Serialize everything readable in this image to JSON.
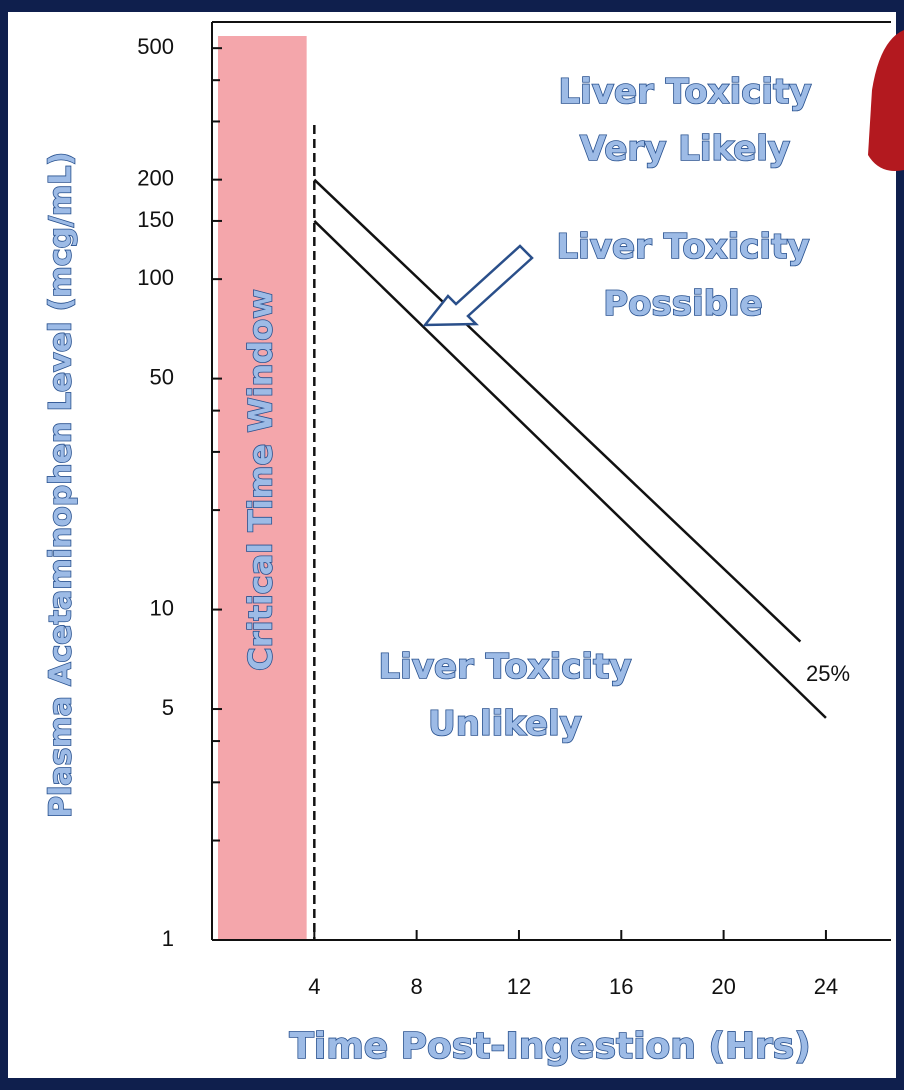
{
  "chart_data": {
    "type": "line",
    "x_label": "Time Post-Ingestion (Hrs)",
    "y_label": "Plasma Acetaminophen Level (mcg/mL)",
    "y_log": true,
    "xlim": [
      0,
      26.7
    ],
    "ylim": [
      1,
      600
    ],
    "xticks": [
      4,
      8,
      12,
      16,
      20,
      24
    ],
    "yticks": [
      1,
      5,
      10,
      50,
      100,
      150,
      200,
      500
    ],
    "yminorticks": [
      2,
      3,
      4,
      20,
      30,
      40,
      300,
      400
    ],
    "series": [
      {
        "color": "#111111",
        "x": [
          4,
          23
        ],
        "values": [
          200,
          8
        ]
      },
      {
        "color": "#111111",
        "x": [
          4,
          24
        ],
        "values": [
          150,
          4.7
        ]
      }
    ],
    "shade": {
      "x": [
        0,
        3.7
      ],
      "color": "#f4a6ab",
      "label": "Critical Time Window"
    },
    "vline": 4,
    "annotations": [
      {
        "lines": [
          "Liver Toxicity",
          "Very Likely"
        ]
      },
      {
        "lines": [
          "Liver Toxicity",
          "Possible"
        ]
      },
      {
        "lines": [
          "Liver Toxicity",
          "Unlikely"
        ]
      },
      {
        "lines": [
          "25%"
        ]
      }
    ]
  }
}
